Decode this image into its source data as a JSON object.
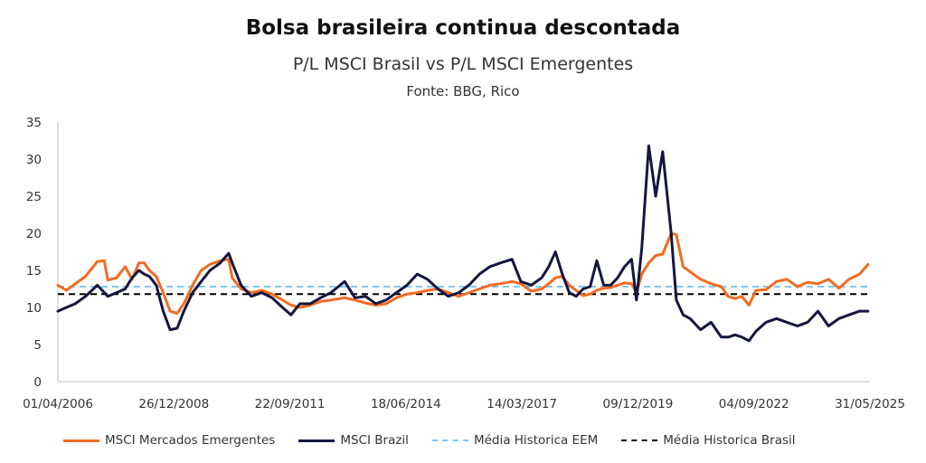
{
  "title": "Bolsa brasileira continua descontada",
  "subtitle": "P/L MSCI Brasil vs P/L MSCI Emergentes",
  "source": "Fonte: BBG, Rico",
  "chart_data": {
    "type": "line",
    "title": "Bolsa brasileira continua descontada",
    "subtitle": "P/L MSCI Brasil vs P/L MSCI Emergentes",
    "ylim": [
      0,
      35
    ],
    "yticks": [
      0,
      5,
      10,
      15,
      20,
      25,
      30,
      35
    ],
    "xlim": [
      "2006-04-01",
      "2025-11-01"
    ],
    "xtick_labels": [
      "01/04/2006",
      "26/12/2008",
      "22/09/2011",
      "18/06/2014",
      "14/03/2017",
      "09/12/2019",
      "04/09/2022",
      "31/05/2025"
    ],
    "grid": false,
    "legend_position": "bottom",
    "series": [
      {
        "name": "MSCI Mercados Emergentes",
        "color": "#F26B21",
        "style": "solid",
        "points": [
          [
            "2006-04-01",
            13.0
          ],
          [
            "2006-06-15",
            12.3
          ],
          [
            "2006-09-01",
            13.2
          ],
          [
            "2006-12-01",
            14.2
          ],
          [
            "2007-03-15",
            16.2
          ],
          [
            "2007-05-15",
            16.3
          ],
          [
            "2007-06-15",
            13.7
          ],
          [
            "2007-09-01",
            14.0
          ],
          [
            "2007-11-15",
            15.5
          ],
          [
            "2008-01-15",
            13.8
          ],
          [
            "2008-03-15",
            16.0
          ],
          [
            "2008-05-01",
            16.0
          ],
          [
            "2008-06-15",
            15.0
          ],
          [
            "2008-08-15",
            14.2
          ],
          [
            "2008-10-15",
            12.0
          ],
          [
            "2008-12-15",
            9.5
          ],
          [
            "2009-02-15",
            9.2
          ],
          [
            "2009-04-15",
            10.5
          ],
          [
            "2009-07-01",
            13.0
          ],
          [
            "2009-09-15",
            15.0
          ],
          [
            "2009-12-01",
            15.8
          ],
          [
            "2010-03-01",
            16.3
          ],
          [
            "2010-05-15",
            16.5
          ],
          [
            "2010-06-15",
            14.0
          ],
          [
            "2010-09-01",
            12.5
          ],
          [
            "2010-12-01",
            12.0
          ],
          [
            "2011-03-01",
            12.3
          ],
          [
            "2011-06-01",
            11.8
          ],
          [
            "2011-09-01",
            11.0
          ],
          [
            "2011-11-15",
            10.3
          ],
          [
            "2012-02-01",
            10.0
          ],
          [
            "2012-05-01",
            10.3
          ],
          [
            "2012-08-01",
            10.8
          ],
          [
            "2012-11-01",
            11.0
          ],
          [
            "2013-03-01",
            11.3
          ],
          [
            "2013-06-01",
            11.0
          ],
          [
            "2013-09-01",
            10.6
          ],
          [
            "2013-12-01",
            10.3
          ],
          [
            "2014-03-01",
            10.5
          ],
          [
            "2014-06-01",
            11.3
          ],
          [
            "2014-09-01",
            11.8
          ],
          [
            "2014-12-01",
            12.0
          ],
          [
            "2015-03-01",
            12.3
          ],
          [
            "2015-06-01",
            12.5
          ],
          [
            "2015-09-01",
            12.0
          ],
          [
            "2015-12-01",
            11.5
          ],
          [
            "2016-03-01",
            12.0
          ],
          [
            "2016-06-01",
            12.5
          ],
          [
            "2016-09-01",
            13.0
          ],
          [
            "2016-12-01",
            13.2
          ],
          [
            "2017-03-15",
            13.5
          ],
          [
            "2017-06-01",
            13.2
          ],
          [
            "2017-09-01",
            12.2
          ],
          [
            "2017-12-01",
            12.5
          ],
          [
            "2018-02-01",
            13.2
          ],
          [
            "2018-04-01",
            14.0
          ],
          [
            "2018-06-01",
            14.2
          ],
          [
            "2018-08-01",
            13.0
          ],
          [
            "2018-10-01",
            12.3
          ],
          [
            "2018-12-01",
            11.6
          ],
          [
            "2019-02-01",
            11.8
          ],
          [
            "2019-04-01",
            12.3
          ],
          [
            "2019-06-01",
            12.6
          ],
          [
            "2019-08-01",
            12.7
          ],
          [
            "2019-10-01",
            13.0
          ],
          [
            "2019-12-01",
            13.3
          ],
          [
            "2020-02-01",
            13.2
          ],
          [
            "2020-03-15",
            12.0
          ],
          [
            "2020-05-01",
            14.5
          ],
          [
            "2020-07-01",
            16.0
          ],
          [
            "2020-09-01",
            17.0
          ],
          [
            "2020-11-01",
            17.2
          ],
          [
            "2021-01-15",
            20.0
          ],
          [
            "2021-03-01",
            19.8
          ],
          [
            "2021-05-01",
            15.5
          ],
          [
            "2021-07-01",
            14.8
          ],
          [
            "2021-10-01",
            13.8
          ],
          [
            "2022-01-01",
            13.2
          ],
          [
            "2022-04-01",
            12.8
          ],
          [
            "2022-06-01",
            11.5
          ],
          [
            "2022-08-01",
            11.2
          ],
          [
            "2022-10-01",
            11.5
          ],
          [
            "2022-12-01",
            10.3
          ],
          [
            "2023-02-01",
            12.3
          ],
          [
            "2023-05-01",
            12.4
          ],
          [
            "2023-08-01",
            13.5
          ],
          [
            "2023-11-01",
            13.8
          ],
          [
            "2024-02-01",
            12.8
          ],
          [
            "2024-05-01",
            13.4
          ],
          [
            "2024-08-01",
            13.2
          ],
          [
            "2024-11-01",
            13.8
          ],
          [
            "2025-02-01",
            12.6
          ],
          [
            "2025-05-01",
            13.8
          ],
          [
            "2025-08-01",
            14.5
          ],
          [
            "2025-10-15",
            15.8
          ]
        ]
      },
      {
        "name": "MSCI Brazil",
        "color": "#14163F",
        "style": "solid",
        "points": [
          [
            "2006-04-01",
            9.5
          ],
          [
            "2006-06-15",
            10.0
          ],
          [
            "2006-09-01",
            10.5
          ],
          [
            "2006-12-01",
            11.5
          ],
          [
            "2007-03-15",
            13.0
          ],
          [
            "2007-06-15",
            11.5
          ],
          [
            "2007-09-01",
            12.0
          ],
          [
            "2007-11-15",
            12.5
          ],
          [
            "2008-01-15",
            14.0
          ],
          [
            "2008-03-15",
            15.0
          ],
          [
            "2008-05-01",
            14.5
          ],
          [
            "2008-06-15",
            14.2
          ],
          [
            "2008-08-15",
            13.0
          ],
          [
            "2008-10-15",
            9.5
          ],
          [
            "2008-12-15",
            7.0
          ],
          [
            "2009-02-15",
            7.2
          ],
          [
            "2009-04-15",
            9.5
          ],
          [
            "2009-07-01",
            12.0
          ],
          [
            "2009-09-15",
            13.5
          ],
          [
            "2009-12-01",
            15.0
          ],
          [
            "2010-03-01",
            16.0
          ],
          [
            "2010-05-15",
            17.3
          ],
          [
            "2010-06-15",
            16.0
          ],
          [
            "2010-09-01",
            13.0
          ],
          [
            "2010-12-01",
            11.5
          ],
          [
            "2011-03-01",
            12.0
          ],
          [
            "2011-06-01",
            11.3
          ],
          [
            "2011-09-01",
            10.0
          ],
          [
            "2011-11-15",
            9.0
          ],
          [
            "2012-02-01",
            10.5
          ],
          [
            "2012-05-01",
            10.5
          ],
          [
            "2012-08-01",
            11.3
          ],
          [
            "2012-11-01",
            12.0
          ],
          [
            "2013-03-01",
            13.5
          ],
          [
            "2013-06-01",
            11.3
          ],
          [
            "2013-09-01",
            11.5
          ],
          [
            "2013-12-01",
            10.5
          ],
          [
            "2014-03-01",
            11.0
          ],
          [
            "2014-06-01",
            12.0
          ],
          [
            "2014-09-01",
            13.0
          ],
          [
            "2014-12-01",
            14.5
          ],
          [
            "2015-03-01",
            13.8
          ],
          [
            "2015-06-01",
            12.5
          ],
          [
            "2015-09-01",
            11.5
          ],
          [
            "2015-12-01",
            12.0
          ],
          [
            "2016-03-01",
            13.0
          ],
          [
            "2016-06-01",
            14.5
          ],
          [
            "2016-09-01",
            15.5
          ],
          [
            "2016-12-01",
            16.0
          ],
          [
            "2017-03-15",
            16.5
          ],
          [
            "2017-06-01",
            13.5
          ],
          [
            "2017-09-01",
            13.0
          ],
          [
            "2017-12-01",
            14.0
          ],
          [
            "2018-02-01",
            15.5
          ],
          [
            "2018-04-01",
            17.5
          ],
          [
            "2018-06-01",
            14.5
          ],
          [
            "2018-08-01",
            12.0
          ],
          [
            "2018-10-01",
            11.5
          ],
          [
            "2018-12-01",
            12.5
          ],
          [
            "2019-02-01",
            12.8
          ],
          [
            "2019-04-01",
            16.3
          ],
          [
            "2019-06-01",
            13.0
          ],
          [
            "2019-08-01",
            13.0
          ],
          [
            "2019-10-01",
            14.0
          ],
          [
            "2019-12-01",
            15.5
          ],
          [
            "2020-02-01",
            16.5
          ],
          [
            "2020-03-15",
            11.0
          ],
          [
            "2020-05-01",
            18.0
          ],
          [
            "2020-07-01",
            31.8
          ],
          [
            "2020-09-01",
            25.0
          ],
          [
            "2020-11-01",
            31.0
          ],
          [
            "2021-01-15",
            20.0
          ],
          [
            "2021-03-01",
            11.0
          ],
          [
            "2021-05-01",
            9.0
          ],
          [
            "2021-07-01",
            8.5
          ],
          [
            "2021-10-01",
            7.0
          ],
          [
            "2022-01-01",
            8.0
          ],
          [
            "2022-04-01",
            6.0
          ],
          [
            "2022-06-01",
            6.0
          ],
          [
            "2022-08-01",
            6.3
          ],
          [
            "2022-10-01",
            6.0
          ],
          [
            "2022-12-01",
            5.5
          ],
          [
            "2023-02-01",
            6.8
          ],
          [
            "2023-05-01",
            8.0
          ],
          [
            "2023-08-01",
            8.5
          ],
          [
            "2023-11-01",
            8.0
          ],
          [
            "2024-02-01",
            7.5
          ],
          [
            "2024-05-01",
            8.0
          ],
          [
            "2024-08-01",
            9.5
          ],
          [
            "2024-11-01",
            7.5
          ],
          [
            "2025-02-01",
            8.5
          ],
          [
            "2025-05-01",
            9.0
          ],
          [
            "2025-08-01",
            9.5
          ],
          [
            "2025-10-15",
            9.5
          ]
        ]
      },
      {
        "name": "Média Historica EEM",
        "color": "#7EC8F2",
        "style": "dashed",
        "constant": 12.8
      },
      {
        "name": "Média Historica Brasil",
        "color": "#000000",
        "style": "dashed",
        "constant": 11.8
      }
    ]
  }
}
